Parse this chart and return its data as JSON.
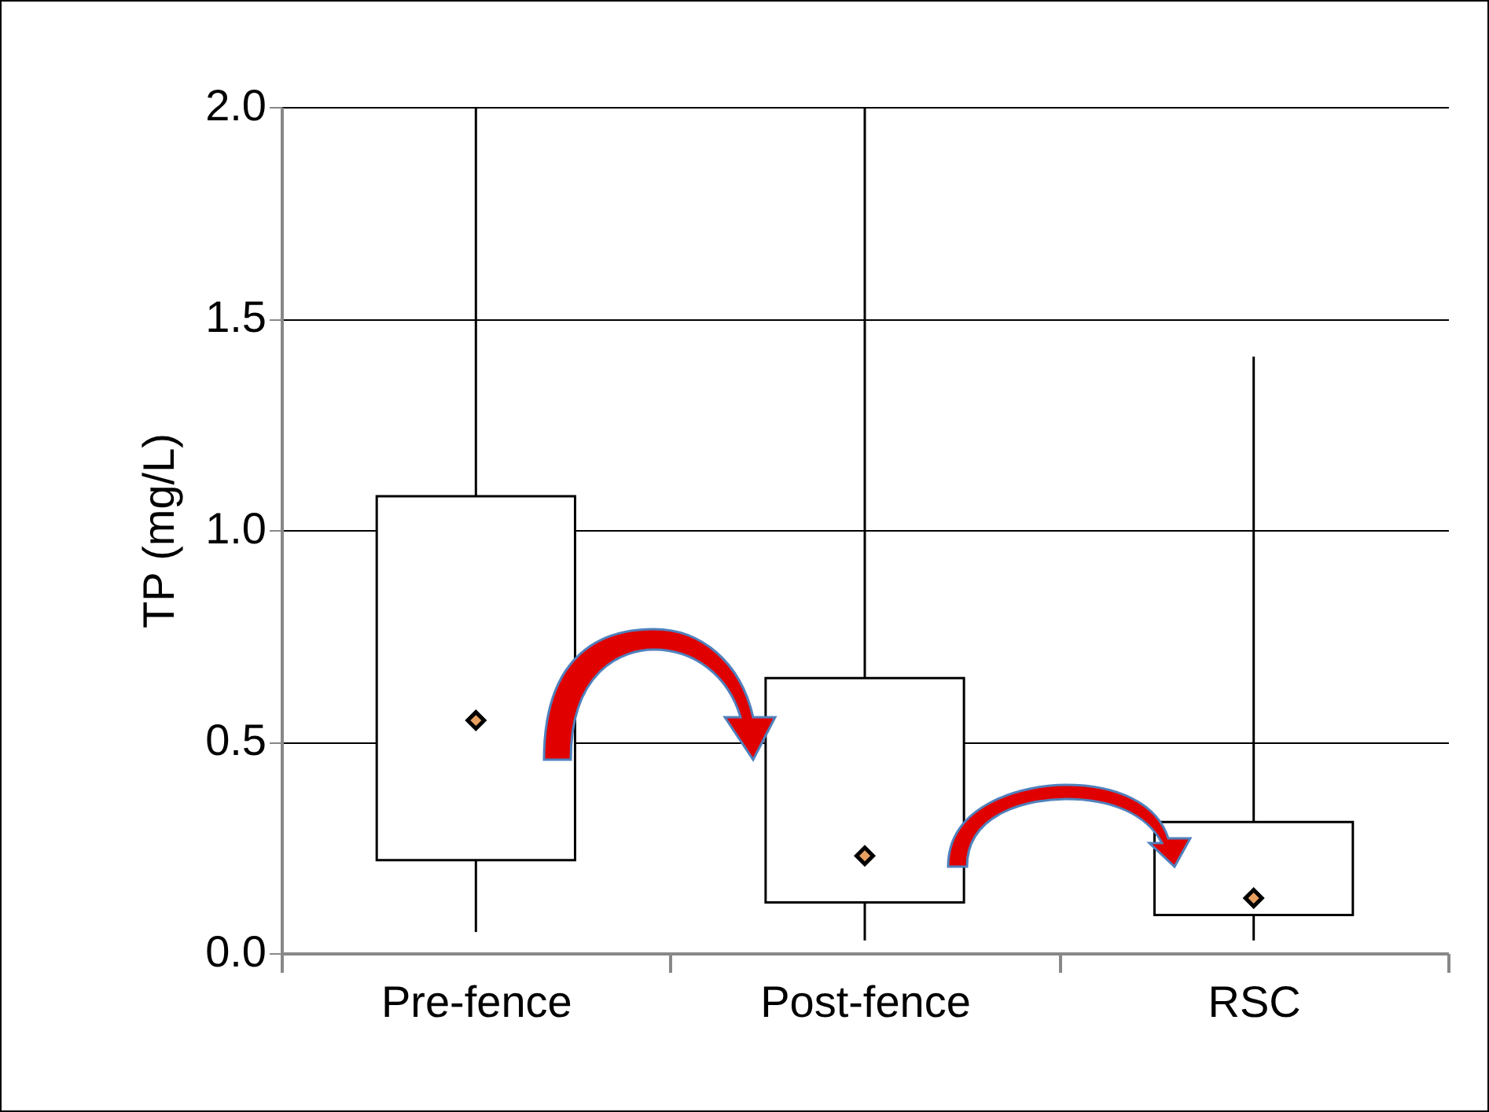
{
  "chart_data": {
    "type": "box",
    "ylabel": "TP (mg/L)",
    "categories": [
      "Pre-fence",
      "Post-fence",
      "RSC"
    ],
    "boxes": [
      {
        "low": 0.05,
        "q1": 0.22,
        "median": 0.55,
        "q3": 1.08,
        "high": 2.0
      },
      {
        "low": 0.03,
        "q1": 0.12,
        "median": 0.23,
        "q3": 0.65,
        "high": 2.0
      },
      {
        "low": 0.03,
        "q1": 0.09,
        "median": 0.13,
        "q3": 0.31,
        "high": 1.41
      }
    ],
    "ylim": [
      0,
      2
    ],
    "yticks": [
      {
        "value": 0,
        "label": "0.0"
      },
      {
        "value": 0.5,
        "label": "0.5"
      },
      {
        "value": 1,
        "label": "1.0"
      },
      {
        "value": 1.5,
        "label": "1.5"
      },
      {
        "value": 2,
        "label": "2.0"
      }
    ],
    "grid": "y",
    "marker": "diamond"
  }
}
